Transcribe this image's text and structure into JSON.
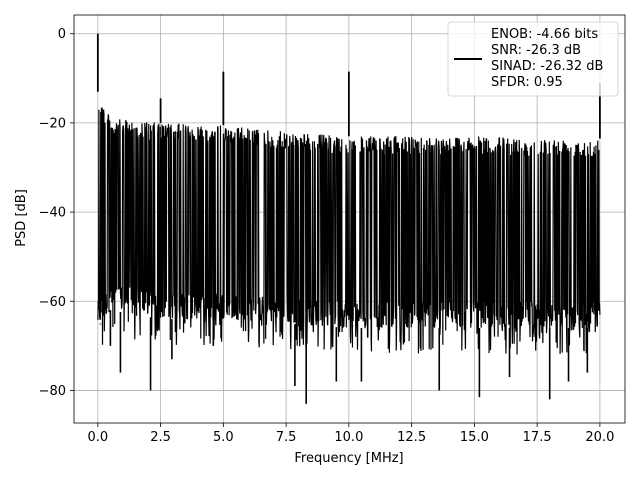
{
  "chart_data": {
    "type": "line",
    "xlabel": "Frequency [MHz]",
    "ylabel": "PSD [dB]",
    "xlim": [
      -0.95,
      21.0
    ],
    "ylim": [
      -87.3,
      4.2
    ],
    "grid": true,
    "x_ticks": [
      0.0,
      2.5,
      5.0,
      7.5,
      10.0,
      12.5,
      15.0,
      17.5,
      20.0
    ],
    "x_tick_labels": [
      "0.0",
      "2.5",
      "5.0",
      "7.5",
      "10.0",
      "12.5",
      "15.0",
      "17.5",
      "20.0"
    ],
    "y_ticks": [
      0,
      -20,
      -40,
      -60,
      -80
    ],
    "y_tick_labels": [
      "0",
      "−20",
      "−40",
      "−60",
      "−80"
    ],
    "legend": {
      "placement": "upper-right",
      "entries": [
        "ENOB: -4.66 bits",
        "SNR: -26.3 dB",
        "SINAD: -26.32 dB",
        "SFDR: 0.95"
      ]
    },
    "series": [
      {
        "color": "#000000",
        "noise_floor_envelope": {
          "x": [
            0.0,
            0.5,
            2.5,
            5.0,
            7.5,
            10.0,
            12.5,
            15.0,
            17.5,
            20.0
          ],
          "upper": [
            -13,
            -19,
            -20,
            -20.5,
            -22,
            -23,
            -23,
            -23,
            -23.5,
            -23.5
          ],
          "lower": [
            -66,
            -62,
            -64,
            -64,
            -65,
            -66,
            -66,
            -66,
            -66,
            -66
          ]
        },
        "spurs": [
          {
            "x": 0.0,
            "y": 0.0
          },
          {
            "x": 2.5,
            "y": -14.5
          },
          {
            "x": 5.0,
            "y": -8.5
          },
          {
            "x": 10.0,
            "y": -8.5
          },
          {
            "x": 20.0,
            "y": -11
          }
        ],
        "deep_dips": [
          {
            "x": 0.1,
            "y": -65
          },
          {
            "x": 0.5,
            "y": -70
          },
          {
            "x": 0.9,
            "y": -76
          },
          {
            "x": 2.1,
            "y": -80
          },
          {
            "x": 2.95,
            "y": -73
          },
          {
            "x": 4.6,
            "y": -70
          },
          {
            "x": 7.85,
            "y": -79
          },
          {
            "x": 8.3,
            "y": -83
          },
          {
            "x": 9.5,
            "y": -78
          },
          {
            "x": 10.5,
            "y": -78
          },
          {
            "x": 13.6,
            "y": -80
          },
          {
            "x": 15.2,
            "y": -81.5
          },
          {
            "x": 16.4,
            "y": -77
          },
          {
            "x": 18.0,
            "y": -82
          },
          {
            "x": 18.75,
            "y": -78
          },
          {
            "x": 19.5,
            "y": -76
          }
        ]
      }
    ]
  }
}
